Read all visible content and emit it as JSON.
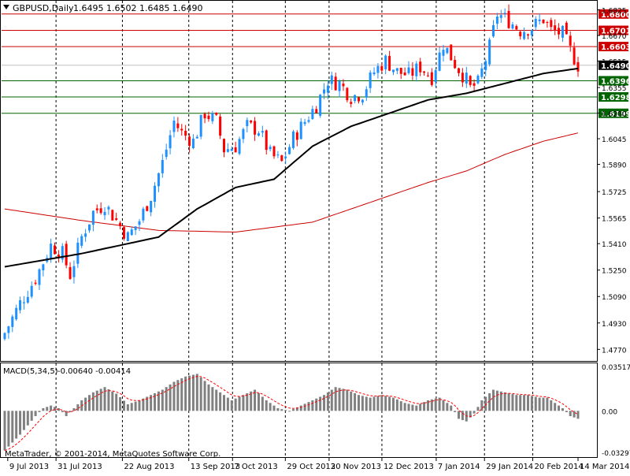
{
  "header": {
    "symbol": "GBPUSD,Daily",
    "ohlc": "1.6495 1.6502 1.6485 1.6490"
  },
  "macd_header": {
    "label": "MACD(5,34,5)",
    "values": "-0.00640 -0.00414"
  },
  "copyright": "MetaTrader, © 2001-2014, MetaQuotes Software Corp.",
  "colors": {
    "bull": "#1e90ff",
    "bear": "#ff0000",
    "sma200": "#000000",
    "sma_long": "#cc0000",
    "resistance": "#cc0000",
    "support": "#006400",
    "price_badge": "#000000",
    "macd_bar": "#808080",
    "macd_signal": "#ff0000",
    "grid_v": "#000000"
  },
  "chart_data": [
    {
      "type": "candlestick",
      "title": "GBPUSD,Daily",
      "x": [
        "9 Jul 2013",
        "31 Jul 2013",
        "22 Aug 2013",
        "13 Sep 2013",
        "7 Oct 2013",
        "29 Oct 2013",
        "20 Nov 2013",
        "12 Dec 2013",
        "7 Jan 2014",
        "29 Jan 2014",
        "20 Feb 2014",
        "14 Mar 2014"
      ],
      "ylim": [
        1.47,
        1.688
      ],
      "y_ticks": [
        "1.6825",
        "1.6670",
        "1.6515",
        "1.6355",
        "1.6200",
        "1.6045",
        "1.5890",
        "1.5725",
        "1.5565",
        "1.5410",
        "1.5250",
        "1.5090",
        "1.4930",
        "1.4770"
      ],
      "last_price": {
        "label": "1.6490",
        "value": 1.649
      },
      "horizontal_levels": [
        {
          "label": "1.6800",
          "value": 1.68,
          "kind": "resistance"
        },
        {
          "label": "1.6701",
          "value": 1.6701,
          "kind": "resistance"
        },
        {
          "label": "1.6603",
          "value": 1.6603,
          "kind": "resistance"
        },
        {
          "label": "1.6396",
          "value": 1.6396,
          "kind": "support"
        },
        {
          "label": "1.6298",
          "value": 1.6298,
          "kind": "support"
        },
        {
          "label": "1.6199",
          "value": 1.6199,
          "kind": "support"
        }
      ],
      "close_path": [
        [
          0,
          1.487
        ],
        [
          4,
          1.505
        ],
        [
          8,
          1.52
        ],
        [
          12,
          1.54
        ],
        [
          15,
          1.535
        ],
        [
          17,
          1.522
        ],
        [
          20,
          1.545
        ],
        [
          23,
          1.56
        ],
        [
          26,
          1.565
        ],
        [
          29,
          1.555
        ],
        [
          32,
          1.545
        ],
        [
          35,
          1.555
        ],
        [
          38,
          1.57
        ],
        [
          41,
          1.59
        ],
        [
          44,
          1.615
        ],
        [
          46,
          1.608
        ],
        [
          49,
          1.603
        ],
        [
          52,
          1.62
        ],
        [
          55,
          1.615
        ],
        [
          57,
          1.598
        ],
        [
          60,
          1.6
        ],
        [
          63,
          1.612
        ],
        [
          66,
          1.61
        ],
        [
          69,
          1.595
        ],
        [
          72,
          1.59
        ],
        [
          75,
          1.605
        ],
        [
          78,
          1.615
        ],
        [
          81,
          1.625
        ],
        [
          84,
          1.64
        ],
        [
          87,
          1.638
        ],
        [
          90,
          1.63
        ],
        [
          93,
          1.632
        ],
        [
          96,
          1.645
        ],
        [
          99,
          1.652
        ],
        [
          102,
          1.645
        ],
        [
          105,
          1.643
        ],
        [
          108,
          1.648
        ],
        [
          111,
          1.642
        ],
        [
          114,
          1.662
        ],
        [
          117,
          1.65
        ],
        [
          120,
          1.64
        ],
        [
          121,
          1.635
        ],
        [
          123,
          1.638
        ],
        [
          126,
          1.66
        ],
        [
          128,
          1.68
        ],
        [
          131,
          1.676
        ],
        [
          134,
          1.67
        ],
        [
          137,
          1.672
        ],
        [
          140,
          1.677
        ],
        [
          142,
          1.67
        ],
        [
          145,
          1.668
        ],
        [
          147,
          1.658
        ],
        [
          149,
          1.649
        ]
      ],
      "sma_black": [
        [
          0,
          1.527
        ],
        [
          20,
          1.535
        ],
        [
          40,
          1.545
        ],
        [
          50,
          1.562
        ],
        [
          60,
          1.575
        ],
        [
          70,
          1.58
        ],
        [
          80,
          1.6
        ],
        [
          90,
          1.612
        ],
        [
          100,
          1.62
        ],
        [
          110,
          1.628
        ],
        [
          120,
          1.632
        ],
        [
          130,
          1.638
        ],
        [
          140,
          1.644
        ],
        [
          149,
          1.647
        ]
      ],
      "sma_red": [
        [
          0,
          1.562
        ],
        [
          20,
          1.555
        ],
        [
          40,
          1.549
        ],
        [
          60,
          1.548
        ],
        [
          80,
          1.554
        ],
        [
          100,
          1.57
        ],
        [
          110,
          1.578
        ],
        [
          120,
          1.585
        ],
        [
          130,
          1.595
        ],
        [
          140,
          1.603
        ],
        [
          149,
          1.608
        ]
      ]
    },
    {
      "type": "bar",
      "title": "MACD(5,34,5)",
      "ylim": [
        -0.0035,
        0.0036
      ],
      "y_ticks": [
        "0.03517",
        "0.00",
        "-0.03297"
      ],
      "histogram": [
        [
          0,
          -0.003
        ],
        [
          4,
          -0.0018
        ],
        [
          8,
          -0.0004
        ],
        [
          10,
          0.0002
        ],
        [
          12,
          0.0004
        ],
        [
          14,
          0.0002
        ],
        [
          16,
          -0.0004
        ],
        [
          18,
          0.0002
        ],
        [
          20,
          0.0008
        ],
        [
          23,
          0.0014
        ],
        [
          26,
          0.0018
        ],
        [
          29,
          0.0013
        ],
        [
          32,
          0.0005
        ],
        [
          35,
          0.0008
        ],
        [
          38,
          0.0012
        ],
        [
          41,
          0.0016
        ],
        [
          44,
          0.0022
        ],
        [
          47,
          0.0026
        ],
        [
          50,
          0.0028
        ],
        [
          53,
          0.002
        ],
        [
          56,
          0.0014
        ],
        [
          59,
          0.0008
        ],
        [
          62,
          0.0012
        ],
        [
          65,
          0.0016
        ],
        [
          68,
          0.0008
        ],
        [
          71,
          0.0002
        ],
        [
          74,
          0.0
        ],
        [
          77,
          0.0004
        ],
        [
          80,
          0.0008
        ],
        [
          83,
          0.0012
        ],
        [
          86,
          0.0018
        ],
        [
          89,
          0.0016
        ],
        [
          92,
          0.0012
        ],
        [
          95,
          0.001
        ],
        [
          98,
          0.0012
        ],
        [
          101,
          0.001
        ],
        [
          104,
          0.0006
        ],
        [
          107,
          0.0004
        ],
        [
          110,
          0.0008
        ],
        [
          113,
          0.001
        ],
        [
          116,
          0.0004
        ],
        [
          118,
          -0.0006
        ],
        [
          120,
          -0.0008
        ],
        [
          122,
          -0.0002
        ],
        [
          124,
          0.0008
        ],
        [
          127,
          0.0016
        ],
        [
          130,
          0.0014
        ],
        [
          133,
          0.0012
        ],
        [
          136,
          0.0012
        ],
        [
          139,
          0.001
        ],
        [
          141,
          0.001
        ],
        [
          143,
          0.0006
        ],
        [
          145,
          0.0002
        ],
        [
          147,
          -0.0004
        ],
        [
          149,
          -0.0006
        ]
      ]
    }
  ]
}
